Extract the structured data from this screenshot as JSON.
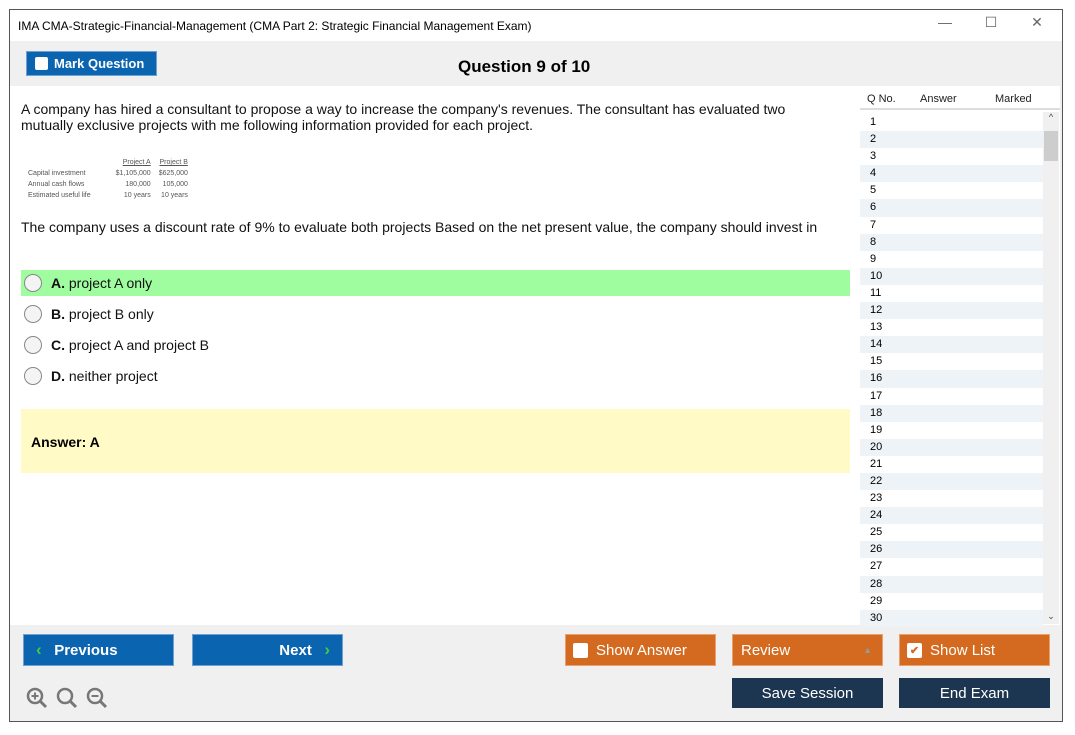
{
  "window": {
    "title": "IMA CMA-Strategic-Financial-Management (CMA Part 2: Strategic Financial Management Exam)",
    "minimize": "—",
    "maximize": "☐",
    "close": "✕"
  },
  "toolbar": {
    "mark_label": "Mark Question",
    "question_title": "Question 9 of 10"
  },
  "question": {
    "text1": "A company has hired a consultant to propose a way to increase the company's revenues. The consultant has evaluated two mutually exclusive projects with me following information provided for each project.",
    "table": {
      "headers": [
        "",
        "Project A",
        "Project B"
      ],
      "rows": [
        [
          "Capital investment",
          "$1,105,000",
          "$625,000"
        ],
        [
          "Annual cash flows",
          "180,000",
          "105,000"
        ],
        [
          "Estimated useful life",
          "10 years",
          "10 years"
        ]
      ]
    },
    "text2": "The company uses a discount rate of 9% to evaluate both projects Based on the net present value, the company should invest in",
    "options": [
      {
        "letter": "A.",
        "text": "project A only"
      },
      {
        "letter": "B.",
        "text": "project B only"
      },
      {
        "letter": "C.",
        "text": "project A and project B"
      },
      {
        "letter": "D.",
        "text": "neither project"
      }
    ],
    "selected": "A",
    "answer": "Answer: A"
  },
  "list": {
    "headers": [
      "Q No.",
      "Answer",
      "Marked"
    ],
    "rows": [
      "1",
      "2",
      "3",
      "4",
      "5",
      "6",
      "7",
      "8",
      "9",
      "10",
      "11",
      "12",
      "13",
      "14",
      "15",
      "16",
      "17",
      "18",
      "19",
      "20",
      "21",
      "22",
      "23",
      "24",
      "25",
      "26",
      "27",
      "28",
      "29",
      "30"
    ]
  },
  "footer": {
    "previous": "Previous",
    "next": "Next",
    "show_answer": "Show Answer",
    "review": "Review",
    "show_list": "Show List",
    "save_session": "Save Session",
    "end_exam": "End Exam"
  },
  "colors": {
    "blue": "#0a64b0",
    "orange": "#d46a1f",
    "navy": "#1c3550",
    "selected": "#9ffd9f",
    "answer_bg": "#fffac6"
  }
}
